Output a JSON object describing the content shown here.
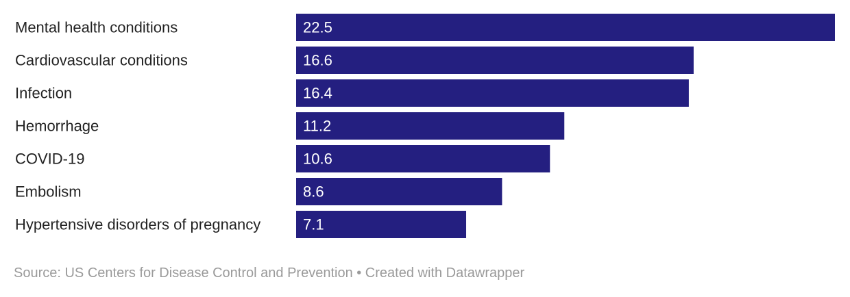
{
  "chart_data": {
    "type": "bar",
    "orientation": "horizontal",
    "categories": [
      "Mental health conditions",
      "Cardiovascular conditions",
      "Infection",
      "Hemorrhage",
      "COVID-19",
      "Embolism",
      "Hypertensive disorders of pregnancy"
    ],
    "values": [
      22.5,
      16.6,
      16.4,
      11.2,
      10.6,
      8.6,
      7.1
    ],
    "value_labels": [
      "22.5",
      "16.6",
      "16.4",
      "11.2",
      "10.6",
      "8.6",
      "7.1"
    ],
    "title": "",
    "xlabel": "",
    "ylabel": "",
    "xlim": [
      0,
      22.5
    ],
    "grid": false,
    "legend": "none",
    "bar_color": "#241f80"
  },
  "footer": {
    "source": "Source: US Centers for Disease Control and Prevention • Created with Datawrapper"
  }
}
